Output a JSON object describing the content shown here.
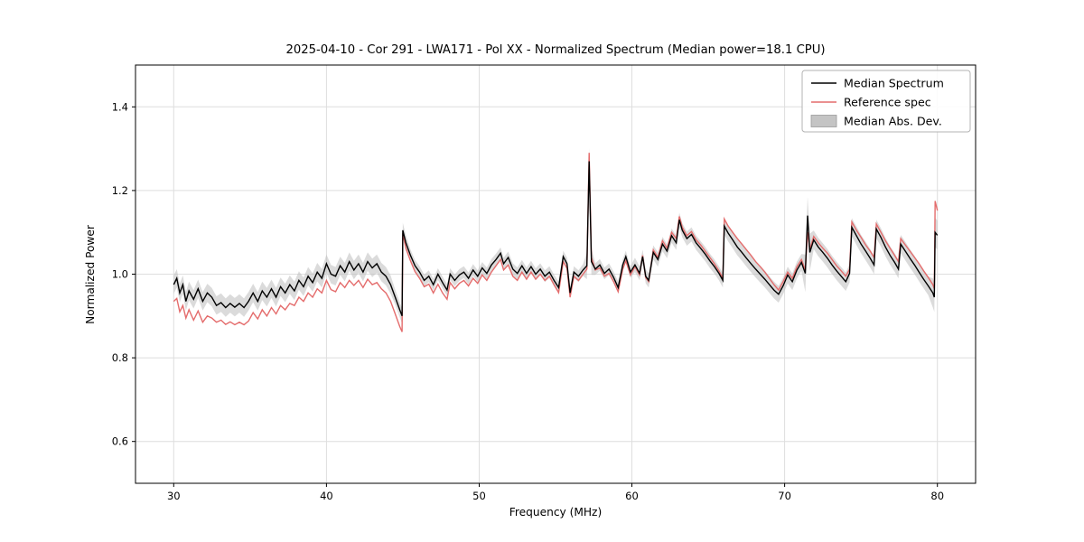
{
  "title": "2025-04-10 - Cor 291 - LWA171 - Pol XX - Normalized Spectrum (Median power=18.1 CPU)",
  "chart_data": {
    "type": "line",
    "title": "2025-04-10 - Cor 291 - LWA171 - Pol XX - Normalized Spectrum (Median power=18.1 CPU)",
    "xlabel": "Frequency (MHz)",
    "ylabel": "Normalized Power",
    "xlim": [
      27.5,
      82.5
    ],
    "ylim": [
      0.5,
      1.5
    ],
    "xticks": [
      30,
      40,
      50,
      60,
      70,
      80
    ],
    "yticks": [
      0.6,
      0.8,
      1.0,
      1.2,
      1.4
    ],
    "grid": true,
    "colors": {
      "median": "#000000",
      "reference": "#e46c6c",
      "band": "#bdbdbd",
      "grid": "#dedede",
      "frame": "#000000",
      "legend_border": "#b3b3b3"
    },
    "legend": {
      "position": "upper right",
      "entries": [
        {
          "label": "Median Spectrum",
          "type": "line",
          "color": "#000000"
        },
        {
          "label": "Reference spec",
          "type": "line",
          "color": "#e46c6c"
        },
        {
          "label": "Median Abs. Dev.",
          "type": "patch",
          "color": "#c4c4c4"
        }
      ]
    },
    "mad_segments": [
      [
        30,
        44.5,
        0.022
      ],
      [
        44.5,
        45.3,
        0.018
      ],
      [
        45.3,
        57.0,
        0.014
      ],
      [
        57.0,
        57.45,
        0.032
      ],
      [
        57.45,
        60.0,
        0.014
      ],
      [
        60.0,
        66.0,
        0.017
      ],
      [
        66.0,
        71.3,
        0.02
      ],
      [
        71.3,
        71.75,
        0.045
      ],
      [
        71.75,
        79.6,
        0.022
      ],
      [
        79.6,
        80.05,
        0.035
      ]
    ],
    "series_format": [
      "frequency_mhz",
      "median_spectrum",
      "reference_spec"
    ],
    "points": [
      [
        30,
        0.975,
        0.935
      ],
      [
        30.2,
        0.99,
        0.942
      ],
      [
        30.4,
        0.955,
        0.91
      ],
      [
        30.6,
        0.975,
        0.925
      ],
      [
        30.8,
        0.935,
        0.895
      ],
      [
        31,
        0.96,
        0.915
      ],
      [
        31.3,
        0.94,
        0.89
      ],
      [
        31.6,
        0.965,
        0.912
      ],
      [
        31.9,
        0.935,
        0.885
      ],
      [
        32.2,
        0.955,
        0.9
      ],
      [
        32.5,
        0.945,
        0.895
      ],
      [
        32.8,
        0.925,
        0.885
      ],
      [
        33.1,
        0.932,
        0.89
      ],
      [
        33.4,
        0.92,
        0.88
      ],
      [
        33.7,
        0.93,
        0.886
      ],
      [
        34,
        0.921,
        0.879
      ],
      [
        34.3,
        0.93,
        0.885
      ],
      [
        34.6,
        0.92,
        0.879
      ],
      [
        34.9,
        0.935,
        0.888
      ],
      [
        35.2,
        0.955,
        0.908
      ],
      [
        35.5,
        0.935,
        0.893
      ],
      [
        35.8,
        0.96,
        0.915
      ],
      [
        36.1,
        0.945,
        0.9
      ],
      [
        36.4,
        0.965,
        0.92
      ],
      [
        36.7,
        0.945,
        0.905
      ],
      [
        37,
        0.97,
        0.925
      ],
      [
        37.3,
        0.955,
        0.915
      ],
      [
        37.6,
        0.975,
        0.93
      ],
      [
        37.9,
        0.96,
        0.925
      ],
      [
        38.2,
        0.985,
        0.945
      ],
      [
        38.5,
        0.97,
        0.935
      ],
      [
        38.8,
        0.995,
        0.955
      ],
      [
        39.1,
        0.98,
        0.945
      ],
      [
        39.4,
        1.005,
        0.965
      ],
      [
        39.7,
        0.99,
        0.955
      ],
      [
        40,
        1.025,
        0.985
      ],
      [
        40.3,
        1,
        0.963
      ],
      [
        40.6,
        0.995,
        0.958
      ],
      [
        40.9,
        1.02,
        0.98
      ],
      [
        41.2,
        1.005,
        0.968
      ],
      [
        41.5,
        1.03,
        0.985
      ],
      [
        41.8,
        1.01,
        0.973
      ],
      [
        42.1,
        1.025,
        0.985
      ],
      [
        42.4,
        1.005,
        0.968
      ],
      [
        42.7,
        1.03,
        0.988
      ],
      [
        43,
        1.015,
        0.975
      ],
      [
        43.3,
        1.025,
        0.98
      ],
      [
        43.6,
        1.005,
        0.965
      ],
      [
        43.9,
        0.995,
        0.955
      ],
      [
        44.2,
        0.975,
        0.935
      ],
      [
        44.5,
        0.945,
        0.905
      ],
      [
        44.8,
        0.915,
        0.875
      ],
      [
        44.95,
        0.9,
        0.862
      ],
      [
        45,
        1.105,
        1.098
      ],
      [
        45.2,
        1.075,
        1.062
      ],
      [
        45.5,
        1.045,
        1.032
      ],
      [
        45.8,
        1.02,
        1.006
      ],
      [
        46.1,
        1.005,
        0.99
      ],
      [
        46.4,
        0.985,
        0.97
      ],
      [
        46.7,
        0.995,
        0.976
      ],
      [
        47,
        0.975,
        0.955
      ],
      [
        47.3,
        1,
        0.976
      ],
      [
        47.6,
        0.98,
        0.955
      ],
      [
        47.9,
        0.962,
        0.94
      ],
      [
        48.1,
        1,
        0.98
      ],
      [
        48.4,
        0.985,
        0.965
      ],
      [
        48.7,
        0.998,
        0.978
      ],
      [
        49,
        1.005,
        0.985
      ],
      [
        49.3,
        0.99,
        0.972
      ],
      [
        49.6,
        1.01,
        0.99
      ],
      [
        49.9,
        0.995,
        0.978
      ],
      [
        50.2,
        1.015,
        0.998
      ],
      [
        50.5,
        1.002,
        0.985
      ],
      [
        50.8,
        1.022,
        1.005
      ],
      [
        51.1,
        1.035,
        1.02
      ],
      [
        51.4,
        1.05,
        1.035
      ],
      [
        51.6,
        1.025,
        1.01
      ],
      [
        51.9,
        1.04,
        1.022
      ],
      [
        52.2,
        1.012,
        0.995
      ],
      [
        52.5,
        1.002,
        0.985
      ],
      [
        52.8,
        1.02,
        1.005
      ],
      [
        53.1,
        1.002,
        0.988
      ],
      [
        53.4,
        1.018,
        1.005
      ],
      [
        53.7,
        1,
        0.988
      ],
      [
        54,
        1.012,
        1
      ],
      [
        54.3,
        0.995,
        0.985
      ],
      [
        54.6,
        1.005,
        0.995
      ],
      [
        54.9,
        0.985,
        0.975
      ],
      [
        55.2,
        0.968,
        0.956
      ],
      [
        55.5,
        1.042,
        1.03
      ],
      [
        55.75,
        1.025,
        1.014
      ],
      [
        55.95,
        0.955,
        0.945
      ],
      [
        56.2,
        1.005,
        0.995
      ],
      [
        56.5,
        0.995,
        0.985
      ],
      [
        56.8,
        1.01,
        1
      ],
      [
        57.05,
        1.02,
        1.012
      ],
      [
        57.2,
        1.27,
        1.29
      ],
      [
        57.35,
        1.03,
        1.04
      ],
      [
        57.6,
        1.012,
        1.01
      ],
      [
        57.9,
        1.022,
        1.015
      ],
      [
        58.2,
        1.002,
        0.995
      ],
      [
        58.5,
        1.012,
        1.002
      ],
      [
        58.8,
        0.992,
        0.982
      ],
      [
        59.1,
        0.968,
        0.958
      ],
      [
        59.4,
        1.022,
        1.012
      ],
      [
        59.6,
        1.042,
        1.032
      ],
      [
        59.9,
        1.005,
        0.998
      ],
      [
        60.2,
        1.022,
        1.018
      ],
      [
        60.5,
        1.002,
        0.998
      ],
      [
        60.7,
        1.042,
        1.045
      ],
      [
        60.9,
        0.995,
        0.992
      ],
      [
        61.1,
        0.985,
        0.982
      ],
      [
        61.4,
        1.052,
        1.058
      ],
      [
        61.7,
        1.035,
        1.04
      ],
      [
        62,
        1.072,
        1.08
      ],
      [
        62.3,
        1.055,
        1.062
      ],
      [
        62.6,
        1.092,
        1.1
      ],
      [
        62.9,
        1.075,
        1.085
      ],
      [
        63.1,
        1.13,
        1.138
      ],
      [
        63.3,
        1.105,
        1.112
      ],
      [
        63.6,
        1.085,
        1.092
      ],
      [
        63.9,
        1.095,
        1.102
      ],
      [
        64.2,
        1.075,
        1.082
      ],
      [
        64.5,
        1.062,
        1.07
      ],
      [
        64.8,
        1.048,
        1.055
      ],
      [
        65.1,
        1.032,
        1.04
      ],
      [
        65.4,
        1.018,
        1.025
      ],
      [
        65.7,
        1.002,
        1.008
      ],
      [
        65.95,
        0.985,
        0.99
      ],
      [
        66.05,
        1.115,
        1.132
      ],
      [
        66.3,
        1.098,
        1.115
      ],
      [
        66.6,
        1.082,
        1.1
      ],
      [
        66.9,
        1.065,
        1.085
      ],
      [
        67.2,
        1.052,
        1.072
      ],
      [
        67.5,
        1.038,
        1.058
      ],
      [
        67.8,
        1.025,
        1.045
      ],
      [
        68.1,
        1.012,
        1.03
      ],
      [
        68.4,
        1,
        1.018
      ],
      [
        68.7,
        0.988,
        1.005
      ],
      [
        69,
        0.975,
        0.99
      ],
      [
        69.3,
        0.962,
        0.975
      ],
      [
        69.6,
        0.952,
        0.962
      ],
      [
        69.9,
        0.972,
        0.982
      ],
      [
        70.2,
        0.998,
        1.005
      ],
      [
        70.5,
        0.982,
        0.99
      ],
      [
        70.8,
        1.01,
        1.018
      ],
      [
        71.1,
        1.028,
        1.035
      ],
      [
        71.35,
        1.002,
        1.01
      ],
      [
        71.5,
        1.14,
        1.1
      ],
      [
        71.65,
        1.052,
        1.06
      ],
      [
        71.9,
        1.082,
        1.09
      ],
      [
        72.2,
        1.065,
        1.075
      ],
      [
        72.5,
        1.052,
        1.062
      ],
      [
        72.8,
        1.038,
        1.05
      ],
      [
        73.1,
        1.022,
        1.035
      ],
      [
        73.4,
        1.008,
        1.02
      ],
      [
        73.7,
        0.995,
        1.008
      ],
      [
        74,
        0.982,
        0.995
      ],
      [
        74.25,
        1.002,
        1.012
      ],
      [
        74.4,
        1.112,
        1.125
      ],
      [
        74.7,
        1.092,
        1.105
      ],
      [
        75,
        1.072,
        1.088
      ],
      [
        75.3,
        1.055,
        1.07
      ],
      [
        75.6,
        1.038,
        1.055
      ],
      [
        75.85,
        1.022,
        1.04
      ],
      [
        76,
        1.108,
        1.12
      ],
      [
        76.3,
        1.088,
        1.1
      ],
      [
        76.6,
        1.065,
        1.08
      ],
      [
        76.9,
        1.045,
        1.062
      ],
      [
        77.2,
        1.028,
        1.045
      ],
      [
        77.45,
        1.012,
        1.03
      ],
      [
        77.6,
        1.072,
        1.085
      ],
      [
        77.9,
        1.055,
        1.07
      ],
      [
        78.2,
        1.038,
        1.055
      ],
      [
        78.5,
        1.022,
        1.04
      ],
      [
        78.8,
        1.005,
        1.025
      ],
      [
        79.1,
        0.988,
        1.008
      ],
      [
        79.4,
        0.972,
        0.992
      ],
      [
        79.7,
        0.955,
        0.975
      ],
      [
        79.8,
        0.945,
        0.965
      ],
      [
        79.85,
        1.1,
        1.175
      ],
      [
        80,
        1.093,
        1.152
      ]
    ]
  }
}
